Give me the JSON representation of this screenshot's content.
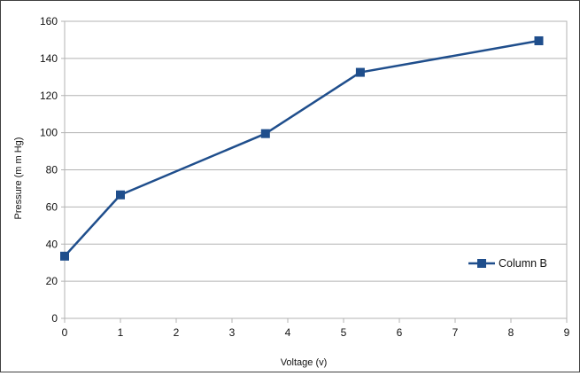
{
  "chart_data": {
    "type": "line",
    "title": "",
    "xlabel": "Voltage (v)",
    "ylabel": "Pressure (m m Hg)",
    "xlim": [
      0,
      9
    ],
    "ylim": [
      0,
      160
    ],
    "xticks": [
      0,
      1,
      2,
      3,
      4,
      5,
      6,
      7,
      8,
      9
    ],
    "yticks": [
      0,
      20,
      40,
      60,
      80,
      100,
      120,
      140,
      160
    ],
    "grid": true,
    "legend_position": "bottom-right",
    "series": [
      {
        "name": "Column B",
        "color": "#1f4e8c",
        "marker": "square",
        "x": [
          0,
          1,
          3.6,
          5.3,
          8.5
        ],
        "y": [
          33.5,
          66.5,
          99.5,
          132.5,
          149.5
        ]
      }
    ]
  }
}
